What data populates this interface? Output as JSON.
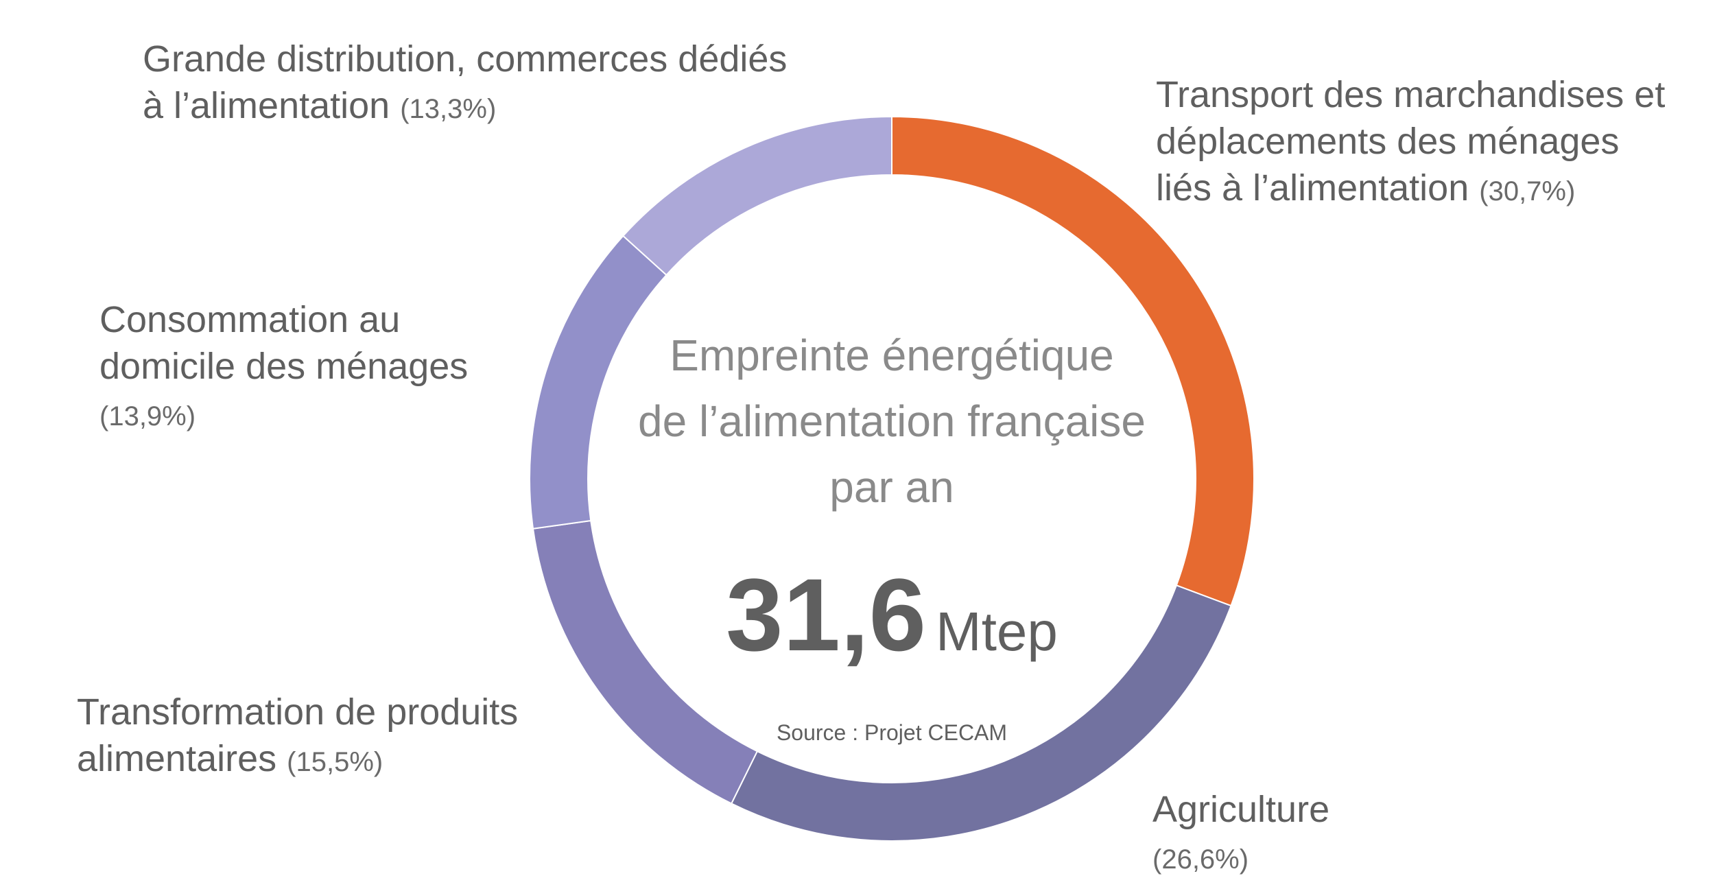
{
  "chart_data": {
    "type": "pie",
    "center": {
      "title_lines": [
        "Empreinte énergétique",
        "de l’alimentation française",
        "par an"
      ],
      "value": "31,6",
      "unit": "Mtep"
    },
    "source": "Source : Projet CECAM",
    "series": [
      {
        "name": "Transport des marchandises et déplacements des ménages liés à l’alimentation",
        "label_lines": [
          "Transport des marchandises et",
          "déplacements des ménages",
          "liés à l’alimentation"
        ],
        "pct_label": "(30,7%)",
        "value": 30.7,
        "color": "#e66a30"
      },
      {
        "name": "Agriculture",
        "label_lines": [
          "Agriculture"
        ],
        "pct_label": "(26,6%)",
        "value": 26.6,
        "color": "#7272a0"
      },
      {
        "name": "Transformation de produits alimentaires",
        "label_lines": [
          "Transformation de produits",
          "alimentaires"
        ],
        "pct_label": "(15,5%)",
        "value": 15.5,
        "color": "#8580b8"
      },
      {
        "name": "Consommation au domicile des ménages",
        "label_lines": [
          "Consommation au",
          "domicile des ménages"
        ],
        "pct_label": "(13,9%)",
        "value": 13.9,
        "color": "#9290c9"
      },
      {
        "name": "Grande distribution, commerces dédiés à l’alimentation",
        "label_lines": [
          "Grande distribution, commerces dédiés",
          "à l’alimentation"
        ],
        "pct_label": "(13,3%)",
        "value": 13.3,
        "color": "#aca8d8"
      }
    ]
  }
}
